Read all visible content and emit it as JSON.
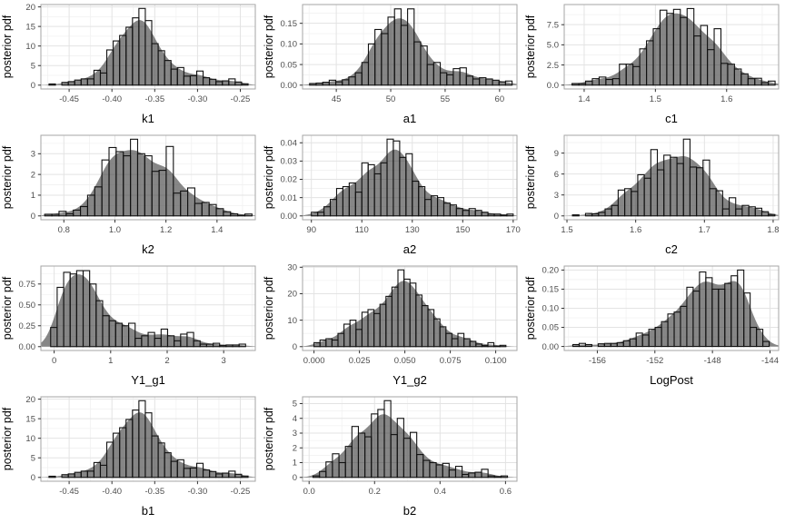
{
  "figure": {
    "kind": "posterior-histogram-grid",
    "shared_ylabel": "posterior pdf",
    "colors": {
      "background": "#ffffff",
      "panel_background": "#ffffff",
      "panel_border": "#a6a6a6",
      "grid_major": "#e3e3e3",
      "grid_minor": "#f1f1f1",
      "density_fill": "rgba(60,60,60,0.62)",
      "bar_stroke": "#111111",
      "tick_mark": "#333333",
      "tick_label": "#4d4d4d",
      "axis_title": "#000000"
    }
  },
  "chart_data": {
    "type": "bar",
    "subtype": "histogram_with_density_grid",
    "ylabel": "posterior pdf",
    "legend": "none",
    "grid": "on",
    "density_smooth_bins": 1.35,
    "panels": [
      {
        "name": "k1",
        "xlabel": "k1",
        "bin_start": -0.4735,
        "bin_width": 0.0075,
        "bins": [
          0.3,
          0,
          0.7,
          0.9,
          1.3,
          1.6,
          1.6,
          3.8,
          3.1,
          9.0,
          11.3,
          12.7,
          14.8,
          17.2,
          19.6,
          16.5,
          10.6,
          8.8,
          6.3,
          4.1,
          4.5,
          2.3,
          2.4,
          3.6,
          1.9,
          1.5,
          0.9,
          1.1,
          1.6,
          0.8,
          0.35
        ],
        "xlim": [
          -0.483,
          -0.2325
        ],
        "ylim": [
          -0.98,
          20.6
        ],
        "xticks": {
          "values": [
            -0.45,
            -0.4,
            -0.35,
            -0.3,
            -0.25
          ],
          "labels": [
            "-0.45",
            "-0.40",
            "-0.35",
            "-0.30",
            "-0.25"
          ]
        },
        "yticks": {
          "values": [
            0,
            5,
            10,
            15,
            20
          ],
          "labels": [
            "0",
            "5",
            "10",
            "15",
            "20"
          ]
        }
      },
      {
        "name": "a1",
        "xlabel": "a1",
        "bin_start": 42.55,
        "bin_width": 0.6,
        "bins": [
          0.004,
          0.005,
          0.007,
          0.012,
          0.008,
          0.013,
          0.02,
          0.03,
          0.055,
          0.1,
          0.135,
          0.125,
          0.165,
          0.185,
          0.145,
          0.185,
          0.105,
          0.095,
          0.05,
          0.055,
          0.03,
          0.025,
          0.04,
          0.042,
          0.022,
          0.015,
          0.018,
          0.015,
          0.012,
          0.008,
          0.01
        ],
        "xlim": [
          41.9,
          61.6
        ],
        "ylim": [
          -0.0093,
          0.1955
        ],
        "xticks": {
          "values": [
            45,
            50,
            55,
            60
          ],
          "labels": [
            "45",
            "50",
            "55",
            "60"
          ]
        },
        "yticks": {
          "values": [
            0,
            0.05,
            0.1,
            0.15
          ],
          "labels": [
            "0.00",
            "0.05",
            "0.10",
            "0.15"
          ]
        }
      },
      {
        "name": "c1",
        "xlabel": "c1",
        "bin_start": 1.383,
        "bin_width": 0.0095,
        "bins": [
          0.2,
          0.2,
          0.5,
          0.8,
          1.0,
          0.7,
          0.8,
          2.6,
          2.6,
          2.3,
          4.5,
          5.5,
          7.0,
          9.3,
          8.9,
          9.4,
          8.4,
          9.5,
          6.1,
          7.4,
          4.4,
          7.0,
          2.7,
          2.6,
          2.0,
          1.4,
          0.8,
          0.85,
          0.3,
          0.5
        ],
        "xlim": [
          1.372,
          1.673
        ],
        "ylim": [
          -0.48,
          10.0
        ],
        "xticks": {
          "values": [
            1.4,
            1.5,
            1.6
          ],
          "labels": [
            "1.4",
            "1.5",
            "1.6"
          ]
        },
        "yticks": {
          "values": [
            0,
            2.5,
            5.0,
            7.5
          ],
          "labels": [
            "0.0",
            "2.5",
            "5.0",
            "7.5"
          ]
        }
      },
      {
        "name": "k2",
        "xlabel": "k2",
        "bin_start": 0.725,
        "bin_width": 0.028,
        "bins": [
          0.08,
          0.08,
          0.22,
          0.1,
          0.28,
          0.45,
          1.0,
          1.4,
          2.7,
          3.3,
          3.1,
          2.9,
          3.7,
          3.0,
          2.9,
          2.15,
          2.2,
          3.35,
          1.1,
          1.2,
          1.35,
          0.6,
          0.65,
          0.55,
          0.35,
          0.2,
          0.1,
          0.03,
          0.09
        ],
        "xlim": [
          0.71,
          1.55
        ],
        "ylim": [
          -0.185,
          3.89
        ],
        "xticks": {
          "values": [
            0.8,
            1.0,
            1.2,
            1.4
          ],
          "labels": [
            "0.8",
            "1.0",
            "1.2",
            "1.4"
          ]
        },
        "yticks": {
          "values": [
            0,
            1,
            2,
            3
          ],
          "labels": [
            "0",
            "1",
            "2",
            "3"
          ]
        }
      },
      {
        "name": "a2",
        "xlabel": "a2",
        "bin_start": 90,
        "bin_width": 2.5,
        "bins": [
          0.002,
          0.002,
          0.005,
          0.009,
          0.015,
          0.016,
          0.018,
          0.013,
          0.029,
          0.028,
          0.023,
          0.029,
          0.042,
          0.041,
          0.032,
          0.034,
          0.019,
          0.016,
          0.009,
          0.011,
          0.01,
          0.007,
          0.006,
          0.004,
          0.003,
          0.004,
          0.003,
          0.002,
          0.001,
          0.001,
          0.0005,
          0.001
        ],
        "xlim": [
          86.5,
          171.5
        ],
        "ylim": [
          -0.0021,
          0.0441
        ],
        "xticks": {
          "values": [
            90,
            110,
            130,
            150,
            170
          ],
          "labels": [
            "90",
            "110",
            "130",
            "150",
            "170"
          ]
        },
        "yticks": {
          "values": [
            0,
            0.01,
            0.02,
            0.03,
            0.04
          ],
          "labels": [
            "0.00",
            "0.01",
            "0.02",
            "0.03",
            "0.04"
          ]
        }
      },
      {
        "name": "c2",
        "xlabel": "c2",
        "bin_start": 1.508,
        "bin_width": 0.0095,
        "bins": [
          0.15,
          0,
          0.35,
          0.3,
          0.5,
          1.0,
          1.5,
          3.7,
          3.9,
          3.5,
          5.9,
          5.4,
          9.5,
          6.6,
          8.7,
          8.4,
          7.5,
          11.0,
          7.0,
          6.9,
          8.0,
          3.9,
          3.6,
          1.0,
          2.6,
          1.0,
          1.5,
          1.3,
          1.1,
          0.6,
          0.2
        ],
        "xlim": [
          1.496,
          1.808
        ],
        "ylim": [
          -0.55,
          11.55
        ],
        "xticks": {
          "values": [
            1.5,
            1.6,
            1.7,
            1.8
          ],
          "labels": [
            "1.5",
            "1.6",
            "1.7",
            "1.8"
          ]
        },
        "yticks": {
          "values": [
            0,
            3,
            6,
            9
          ],
          "labels": [
            "0",
            "3",
            "6",
            "9"
          ]
        }
      },
      {
        "name": "Y1_g1",
        "xlabel": "Y1_g1",
        "bin_start": -0.062,
        "bin_width": 0.115,
        "bins": [
          0.23,
          0.71,
          0.89,
          0.87,
          0.91,
          0.91,
          0.75,
          0.55,
          0.37,
          0.31,
          0.28,
          0.25,
          0.28,
          0.1,
          0.13,
          0.17,
          0.1,
          0.21,
          0.13,
          0.07,
          0.15,
          0.17,
          0.07,
          0.03,
          0.03,
          0.04,
          0.015,
          0.02,
          0.02,
          0.03
        ],
        "xlim": [
          -0.235,
          3.56
        ],
        "ylim": [
          -0.046,
          0.965
        ],
        "xticks": {
          "values": [
            0,
            1,
            2,
            3
          ],
          "labels": [
            "0",
            "1",
            "2",
            "3"
          ]
        },
        "yticks": {
          "values": [
            0,
            0.25,
            0.5,
            0.75
          ],
          "labels": [
            "0.00",
            "0.25",
            "0.50",
            "0.75"
          ]
        }
      },
      {
        "name": "Y1_g2",
        "xlabel": "Y1_g2",
        "bin_start": 0.0,
        "bin_width": 0.0033,
        "bins": [
          1.5,
          2.5,
          3.0,
          2.5,
          5.0,
          8.5,
          10.0,
          6.5,
          13.0,
          14.0,
          12.5,
          16.0,
          19.0,
          22.5,
          29.0,
          25.5,
          24.0,
          19.5,
          15.5,
          14.0,
          10.5,
          7.5,
          5.0,
          3.0,
          5.0,
          3.0,
          2.0,
          1.0,
          0.4,
          1.5,
          0.2,
          0.5
        ],
        "xlim": [
          -0.0063,
          0.1117
        ],
        "ylim": [
          -1.45,
          30.45
        ],
        "xticks": {
          "values": [
            0,
            0.025,
            0.05,
            0.075,
            0.1
          ],
          "labels": [
            "0.000",
            "0.025",
            "0.050",
            "0.075",
            "0.100"
          ]
        },
        "yticks": {
          "values": [
            0,
            10,
            20,
            30
          ],
          "labels": [
            "0",
            "10",
            "20",
            "30"
          ]
        }
      },
      {
        "name": "LogPost",
        "xlabel": "LogPost",
        "bin_start": -157.7,
        "bin_width": 0.44,
        "bins": [
          0.005,
          0.008,
          0.005,
          0,
          0.007,
          0.008,
          0.008,
          0.01,
          0.015,
          0.02,
          0.035,
          0.03,
          0.045,
          0.05,
          0.065,
          0.085,
          0.09,
          0.105,
          0.155,
          0.145,
          0.195,
          0.18,
          0.15,
          0.15,
          0.165,
          0.185,
          0.2,
          0.14,
          0.05,
          0.045,
          0.013
        ],
        "xlim": [
          -158.3,
          -143.4
        ],
        "ylim": [
          -0.0105,
          0.2105
        ],
        "xticks": {
          "values": [
            -156,
            -152,
            -148,
            -144
          ],
          "labels": [
            "-156",
            "-152",
            "-148",
            "-144"
          ]
        },
        "yticks": {
          "values": [
            0,
            0.05,
            0.1,
            0.15,
            0.2
          ],
          "labels": [
            "0.00",
            "0.05",
            "0.10",
            "0.15",
            "0.20"
          ]
        }
      },
      {
        "name": "b1",
        "xlabel": "b1",
        "bin_start": -0.4735,
        "bin_width": 0.0075,
        "bins": [
          0.3,
          0,
          0.7,
          0.9,
          1.3,
          1.6,
          1.6,
          3.8,
          3.1,
          9.0,
          11.3,
          12.7,
          14.8,
          17.2,
          19.6,
          16.5,
          10.6,
          8.8,
          6.3,
          4.1,
          4.5,
          2.3,
          2.4,
          3.6,
          1.9,
          1.5,
          0.9,
          1.1,
          1.6,
          0.8,
          0.35
        ],
        "xlim": [
          -0.483,
          -0.2325
        ],
        "ylim": [
          -0.98,
          20.6
        ],
        "xticks": {
          "values": [
            -0.45,
            -0.4,
            -0.35,
            -0.3,
            -0.25
          ],
          "labels": [
            "-0.45",
            "-0.40",
            "-0.35",
            "-0.30",
            "-0.25"
          ]
        },
        "yticks": {
          "values": [
            0,
            5,
            10,
            15,
            20
          ],
          "labels": [
            "0",
            "5",
            "10",
            "15",
            "20"
          ]
        }
      },
      {
        "name": "b2",
        "xlabel": "b2",
        "bin_start": 0.012,
        "bin_width": 0.0198,
        "bins": [
          0.1,
          0.4,
          1.05,
          1.6,
          1.0,
          2.1,
          3.45,
          3.0,
          2.75,
          4.3,
          4.6,
          5.2,
          2.9,
          4.0,
          2.65,
          3.05,
          1.55,
          1.15,
          1.0,
          0.85,
          0.95,
          0.5,
          0.75,
          0.2,
          0.3,
          0.35,
          0.55,
          0.1,
          0.05,
          0.1
        ],
        "xlim": [
          -0.02,
          0.635
        ],
        "ylim": [
          -0.26,
          5.46
        ],
        "xticks": {
          "values": [
            0,
            0.2,
            0.4,
            0.6
          ],
          "labels": [
            "0.0",
            "0.2",
            "0.4",
            "0.6"
          ]
        },
        "yticks": {
          "values": [
            0,
            1,
            2,
            3,
            4,
            5
          ],
          "labels": [
            "0",
            "1",
            "2",
            "3",
            "4",
            "5"
          ]
        }
      }
    ]
  }
}
